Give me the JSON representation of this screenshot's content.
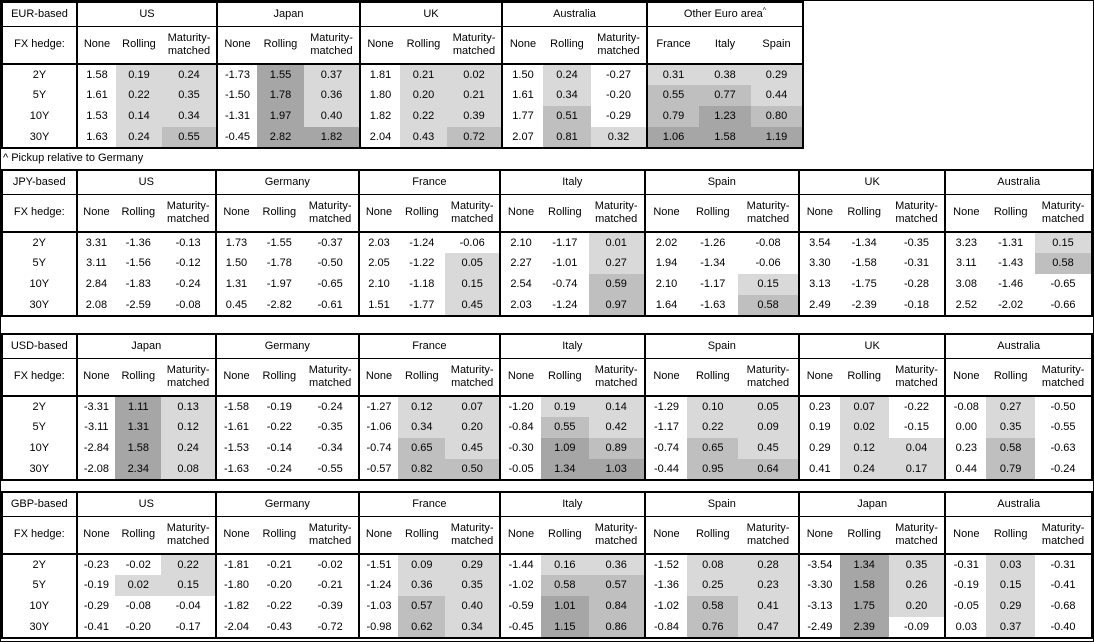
{
  "footnote": "^ Pickup relative to Germany",
  "fx_hedge_label": "FX hedge:",
  "hedge_headers": [
    "None",
    "Rolling",
    "Maturity-matched"
  ],
  "tenors": [
    "2Y",
    "5Y",
    "10Y",
    "30Y"
  ],
  "colors": {
    "shade_light": "#d9d9d9",
    "shade_medium": "#bfbfbf",
    "shade_dark": "#a6a6a6",
    "border": "#000000",
    "background": "#ffffff"
  },
  "shading_rule": {
    "negative": "white",
    "band_light": "0 to 0.5",
    "band_medium": "0.5 to 1.0",
    "band_dark": "1.0 and above",
    "applies_to": "Rolling and Maturity-matched columns, and all Other Euro area pickup columns"
  },
  "tables": [
    {
      "id": "eur",
      "base": "EUR-based",
      "groups": [
        {
          "name": "US",
          "type": "hedge",
          "rows": [
            [
              "1.58",
              "0.19",
              "0.24"
            ],
            [
              "1.61",
              "0.22",
              "0.35"
            ],
            [
              "1.53",
              "0.14",
              "0.34"
            ],
            [
              "1.63",
              "0.24",
              "0.55"
            ]
          ]
        },
        {
          "name": "Japan",
          "type": "hedge",
          "rows": [
            [
              "-1.73",
              "1.55",
              "0.37"
            ],
            [
              "-1.50",
              "1.78",
              "0.36"
            ],
            [
              "-1.31",
              "1.97",
              "0.40"
            ],
            [
              "-0.45",
              "2.82",
              "1.82"
            ]
          ]
        },
        {
          "name": "UK",
          "type": "hedge",
          "rows": [
            [
              "1.81",
              "0.21",
              "0.02"
            ],
            [
              "1.80",
              "0.20",
              "0.21"
            ],
            [
              "1.82",
              "0.22",
              "0.39"
            ],
            [
              "2.04",
              "0.43",
              "0.72"
            ]
          ]
        },
        {
          "name": "Australia",
          "type": "hedge",
          "rows": [
            [
              "1.50",
              "0.24",
              "-0.27"
            ],
            [
              "1.61",
              "0.34",
              "-0.20"
            ],
            [
              "1.77",
              "0.51",
              "-0.29"
            ],
            [
              "2.07",
              "0.81",
              "0.32"
            ]
          ]
        },
        {
          "name": "Other Euro area",
          "superscript": "^",
          "type": "countries",
          "sub_headers": [
            "France",
            "Italy",
            "Spain"
          ],
          "rows": [
            [
              "0.31",
              "0.38",
              "0.29"
            ],
            [
              "0.55",
              "0.77",
              "0.44"
            ],
            [
              "0.79",
              "1.23",
              "0.80"
            ],
            [
              "1.06",
              "1.58",
              "1.19"
            ]
          ]
        }
      ]
    },
    {
      "id": "jpy",
      "base": "JPY-based",
      "groups": [
        {
          "name": "US",
          "type": "hedge",
          "rows": [
            [
              "3.31",
              "-1.36",
              "-0.13"
            ],
            [
              "3.11",
              "-1.56",
              "-0.12"
            ],
            [
              "2.84",
              "-1.83",
              "-0.24"
            ],
            [
              "2.08",
              "-2.59",
              "-0.08"
            ]
          ]
        },
        {
          "name": "Germany",
          "type": "hedge",
          "rows": [
            [
              "1.73",
              "-1.55",
              "-0.37"
            ],
            [
              "1.50",
              "-1.78",
              "-0.50"
            ],
            [
              "1.31",
              "-1.97",
              "-0.65"
            ],
            [
              "0.45",
              "-2.82",
              "-0.61"
            ]
          ]
        },
        {
          "name": "France",
          "type": "hedge",
          "rows": [
            [
              "2.03",
              "-1.24",
              "-0.06"
            ],
            [
              "2.05",
              "-1.22",
              "0.05"
            ],
            [
              "2.10",
              "-1.18",
              "0.15"
            ],
            [
              "1.51",
              "-1.77",
              "0.45"
            ]
          ]
        },
        {
          "name": "Italy",
          "type": "hedge",
          "rows": [
            [
              "2.10",
              "-1.17",
              "0.01"
            ],
            [
              "2.27",
              "-1.01",
              "0.27"
            ],
            [
              "2.54",
              "-0.74",
              "0.59"
            ],
            [
              "2.03",
              "-1.24",
              "0.97"
            ]
          ]
        },
        {
          "name": "Spain",
          "type": "hedge",
          "rows": [
            [
              "2.02",
              "-1.26",
              "-0.08"
            ],
            [
              "1.94",
              "-1.34",
              "-0.06"
            ],
            [
              "2.10",
              "-1.17",
              "0.15"
            ],
            [
              "1.64",
              "-1.63",
              "0.58"
            ]
          ]
        },
        {
          "name": "UK",
          "type": "hedge",
          "rows": [
            [
              "3.54",
              "-1.34",
              "-0.35"
            ],
            [
              "3.30",
              "-1.58",
              "-0.31"
            ],
            [
              "3.13",
              "-1.75",
              "-0.28"
            ],
            [
              "2.49",
              "-2.39",
              "-0.18"
            ]
          ]
        },
        {
          "name": "Australia",
          "type": "hedge",
          "rows": [
            [
              "3.23",
              "-1.31",
              "0.15"
            ],
            [
              "3.11",
              "-1.43",
              "0.58"
            ],
            [
              "3.08",
              "-1.46",
              "-0.65"
            ],
            [
              "2.52",
              "-2.02",
              "-0.66"
            ]
          ]
        }
      ]
    },
    {
      "id": "usd",
      "base": "USD-based",
      "groups": [
        {
          "name": "Japan",
          "type": "hedge",
          "rows": [
            [
              "-3.31",
              "1.11",
              "0.13"
            ],
            [
              "-3.11",
              "1.31",
              "0.12"
            ],
            [
              "-2.84",
              "1.58",
              "0.24"
            ],
            [
              "-2.08",
              "2.34",
              "0.08"
            ]
          ]
        },
        {
          "name": "Germany",
          "type": "hedge",
          "rows": [
            [
              "-1.58",
              "-0.19",
              "-0.24"
            ],
            [
              "-1.61",
              "-0.22",
              "-0.35"
            ],
            [
              "-1.53",
              "-0.14",
              "-0.34"
            ],
            [
              "-1.63",
              "-0.24",
              "-0.55"
            ]
          ]
        },
        {
          "name": "France",
          "type": "hedge",
          "rows": [
            [
              "-1.27",
              "0.12",
              "0.07"
            ],
            [
              "-1.06",
              "0.34",
              "0.20"
            ],
            [
              "-0.74",
              "0.65",
              "0.45"
            ],
            [
              "-0.57",
              "0.82",
              "0.50"
            ]
          ]
        },
        {
          "name": "Italy",
          "type": "hedge",
          "rows": [
            [
              "-1.20",
              "0.19",
              "0.14"
            ],
            [
              "-0.84",
              "0.55",
              "0.42"
            ],
            [
              "-0.30",
              "1.09",
              "0.89"
            ],
            [
              "-0.05",
              "1.34",
              "1.03"
            ]
          ]
        },
        {
          "name": "Spain",
          "type": "hedge",
          "rows": [
            [
              "-1.29",
              "0.10",
              "0.05"
            ],
            [
              "-1.17",
              "0.22",
              "0.09"
            ],
            [
              "-0.74",
              "0.65",
              "0.45"
            ],
            [
              "-0.44",
              "0.95",
              "0.64"
            ]
          ]
        },
        {
          "name": "UK",
          "type": "hedge",
          "rows": [
            [
              "0.23",
              "0.07",
              "-0.22"
            ],
            [
              "0.19",
              "0.02",
              "-0.15"
            ],
            [
              "0.29",
              "0.12",
              "0.04"
            ],
            [
              "0.41",
              "0.24",
              "0.17"
            ]
          ]
        },
        {
          "name": "Australia",
          "type": "hedge",
          "rows": [
            [
              "-0.08",
              "0.27",
              "-0.50"
            ],
            [
              "0.00",
              "0.35",
              "-0.55"
            ],
            [
              "0.23",
              "0.58",
              "-0.63"
            ],
            [
              "0.44",
              "0.79",
              "-0.24"
            ]
          ]
        }
      ]
    },
    {
      "id": "gbp",
      "base": "GBP-based",
      "groups": [
        {
          "name": "US",
          "type": "hedge",
          "rows": [
            [
              "-0.23",
              "-0.02",
              "0.22"
            ],
            [
              "-0.19",
              "0.02",
              "0.15"
            ],
            [
              "-0.29",
              "-0.08",
              "-0.04"
            ],
            [
              "-0.41",
              "-0.20",
              "-0.17"
            ]
          ]
        },
        {
          "name": "Germany",
          "type": "hedge",
          "rows": [
            [
              "-1.81",
              "-0.21",
              "-0.02"
            ],
            [
              "-1.80",
              "-0.20",
              "-0.21"
            ],
            [
              "-1.82",
              "-0.22",
              "-0.39"
            ],
            [
              "-2.04",
              "-0.43",
              "-0.72"
            ]
          ]
        },
        {
          "name": "France",
          "type": "hedge",
          "rows": [
            [
              "-1.51",
              "0.09",
              "0.29"
            ],
            [
              "-1.24",
              "0.36",
              "0.35"
            ],
            [
              "-1.03",
              "0.57",
              "0.40"
            ],
            [
              "-0.98",
              "0.62",
              "0.34"
            ]
          ]
        },
        {
          "name": "Italy",
          "type": "hedge",
          "rows": [
            [
              "-1.44",
              "0.16",
              "0.36"
            ],
            [
              "-1.02",
              "0.58",
              "0.57"
            ],
            [
              "-0.59",
              "1.01",
              "0.84"
            ],
            [
              "-0.45",
              "1.15",
              "0.86"
            ]
          ]
        },
        {
          "name": "Spain",
          "type": "hedge",
          "rows": [
            [
              "-1.52",
              "0.08",
              "0.28"
            ],
            [
              "-1.36",
              "0.25",
              "0.23"
            ],
            [
              "-1.02",
              "0.58",
              "0.41"
            ],
            [
              "-0.84",
              "0.76",
              "0.47"
            ]
          ]
        },
        {
          "name": "Japan",
          "type": "hedge",
          "rows": [
            [
              "-3.54",
              "1.34",
              "0.35"
            ],
            [
              "-3.30",
              "1.58",
              "0.26"
            ],
            [
              "-3.13",
              "1.75",
              "0.20"
            ],
            [
              "-2.49",
              "2.39",
              "-0.09"
            ]
          ]
        },
        {
          "name": "Australia",
          "type": "hedge",
          "rows": [
            [
              "-0.31",
              "0.03",
              "-0.31"
            ],
            [
              "-0.19",
              "0.15",
              "-0.41"
            ],
            [
              "-0.05",
              "0.29",
              "-0.68"
            ],
            [
              "0.03",
              "0.37",
              "-0.40"
            ]
          ]
        }
      ]
    }
  ]
}
